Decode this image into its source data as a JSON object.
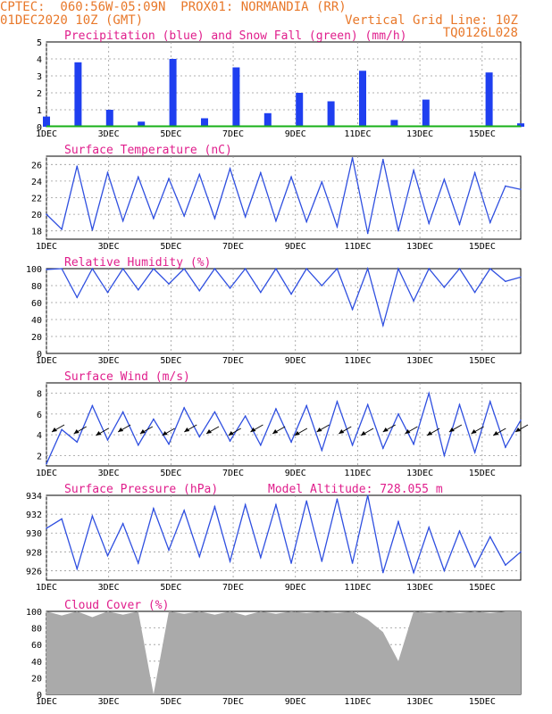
{
  "header": {
    "line1": "CPTEC:  060:56W-05:09N  PROX01: NORMANDIA (RR)",
    "line2_left": "01DEC2020 10Z (GMT)",
    "line2_right": "Vertical Grid Line: 10Z",
    "line3_right": "TQ0126L028"
  },
  "colors": {
    "header": "#e8782a",
    "title": "#e01e8c",
    "line": "#2f4fe0",
    "precip": "#1f3ff0",
    "snow": "#18b018",
    "cloud": "#aaaaaa",
    "grid": "#999999"
  },
  "x_tick_labels": [
    "1DEC",
    "3DEC",
    "5DEC",
    "7DEC",
    "9DEC",
    "11DEC",
    "13DEC",
    "15DEC"
  ],
  "panels": [
    {
      "key": "precip",
      "title": "Precipitation (blue) and Snow Fall (green) (mm/h)",
      "extra": "",
      "yticks": [
        "0",
        "1",
        "2",
        "3",
        "4",
        "5"
      ]
    },
    {
      "key": "temp",
      "title": "Surface Temperature (nC)",
      "extra": "",
      "yticks": [
        "18",
        "20",
        "22",
        "24",
        "26"
      ]
    },
    {
      "key": "rh",
      "title": "Relative Humidity (%)",
      "extra": "",
      "yticks": [
        "0",
        "20",
        "40",
        "60",
        "80",
        "100"
      ]
    },
    {
      "key": "wind",
      "title": "Surface Wind (m/s)",
      "extra": "",
      "yticks": [
        "2",
        "4",
        "6",
        "8"
      ]
    },
    {
      "key": "pres",
      "title": "Surface Pressure (hPa)",
      "extra": "Model Altitude: 728.055 m",
      "yticks": [
        "926",
        "928",
        "930",
        "932",
        "934"
      ]
    },
    {
      "key": "cloud",
      "title": "Cloud Cover (%)",
      "extra": "",
      "yticks": [
        "0",
        "20",
        "40",
        "60",
        "80",
        "100"
      ]
    }
  ],
  "chart_data": [
    {
      "type": "bar",
      "title": "Precipitation (blue) and Snow Fall (green) (mm/h)",
      "ylim": [
        0,
        5
      ],
      "x": [
        1,
        2,
        3,
        4,
        5,
        6,
        7,
        8,
        9,
        10,
        11,
        12,
        13,
        14,
        15,
        16
      ],
      "series": [
        {
          "name": "Precipitation",
          "values": [
            0.6,
            3.8,
            1.0,
            0.3,
            4.0,
            0.5,
            3.5,
            0.8,
            2.0,
            1.5,
            3.3,
            0.4,
            1.6,
            0,
            3.2,
            0.2
          ]
        },
        {
          "name": "Snow Fall",
          "values": [
            0,
            0,
            0,
            0,
            0,
            0,
            0,
            0,
            0,
            0,
            0,
            0,
            0,
            0,
            0,
            0
          ]
        }
      ]
    },
    {
      "type": "line",
      "title": "Surface Temperature (nC)",
      "ylim": [
        17,
        27
      ],
      "x": [
        1,
        2,
        3,
        4,
        5,
        6,
        7,
        8,
        9,
        10,
        11,
        12,
        13,
        14,
        15,
        16,
        17,
        18,
        19,
        20,
        21,
        22,
        23,
        24,
        25,
        26,
        27,
        28,
        29,
        30,
        31,
        32
      ],
      "values": [
        20,
        18.2,
        25.8,
        18.1,
        25,
        19.2,
        24.5,
        19.5,
        24.3,
        19.8,
        24.8,
        19.5,
        25.5,
        19.7,
        25,
        19.2,
        24.5,
        19.1,
        23.9,
        18.5,
        26.8,
        17.7,
        26.6,
        18,
        25.3,
        18.9,
        24.2,
        18.8,
        25,
        19,
        23.4,
        23
      ]
    },
    {
      "type": "line",
      "title": "Relative Humidity (%)",
      "ylim": [
        0,
        100
      ],
      "x": [
        1,
        2,
        3,
        4,
        5,
        6,
        7,
        8,
        9,
        10,
        11,
        12,
        13,
        14,
        15,
        16,
        17,
        18,
        19,
        20,
        21,
        22,
        23,
        24,
        25,
        26,
        27,
        28,
        29,
        30,
        31,
        32
      ],
      "values": [
        99,
        100,
        66,
        100,
        72,
        100,
        75,
        100,
        82,
        100,
        74,
        100,
        77,
        100,
        72,
        100,
        70,
        100,
        80,
        100,
        52,
        100,
        33,
        100,
        62,
        100,
        78,
        100,
        72,
        100,
        85,
        90
      ]
    },
    {
      "type": "line",
      "title": "Surface Wind (m/s)",
      "ylim": [
        1,
        9
      ],
      "x": [
        1,
        2,
        3,
        4,
        5,
        6,
        7,
        8,
        9,
        10,
        11,
        12,
        13,
        14,
        15,
        16,
        17,
        18,
        19,
        20,
        21,
        22,
        23,
        24,
        25,
        26,
        27,
        28,
        29,
        30,
        31,
        32
      ],
      "values": [
        1.2,
        4.5,
        3.3,
        6.8,
        3.5,
        6.2,
        3,
        5.5,
        3.1,
        6.6,
        3.8,
        6.2,
        3.4,
        5.8,
        3,
        6.5,
        3.3,
        6.8,
        2.5,
        7.2,
        3,
        6.9,
        2.7,
        6,
        3.1,
        8,
        2,
        6.9,
        2.3,
        7.2,
        2.8,
        5.4
      ]
    },
    {
      "type": "line",
      "title": "Surface Pressure (hPa)",
      "ylim": [
        925,
        934
      ],
      "x": [
        1,
        2,
        3,
        4,
        5,
        6,
        7,
        8,
        9,
        10,
        11,
        12,
        13,
        14,
        15,
        16,
        17,
        18,
        19,
        20,
        21,
        22,
        23,
        24,
        25,
        26,
        27,
        28,
        29,
        30,
        31,
        32
      ],
      "values": [
        930.5,
        931.5,
        926.2,
        931.8,
        927.6,
        931,
        926.8,
        932.6,
        928.2,
        932.4,
        927.5,
        932.8,
        927,
        933,
        927.4,
        933,
        926.8,
        933.4,
        927,
        933.6,
        926.8,
        934,
        925.8,
        931.2,
        925.8,
        930.6,
        926,
        930.2,
        926.4,
        929.6,
        926.6,
        928
      ]
    },
    {
      "type": "area",
      "title": "Cloud Cover (%)",
      "ylim": [
        0,
        100
      ],
      "x": [
        1,
        2,
        3,
        4,
        5,
        6,
        7,
        8,
        9,
        10,
        11,
        12,
        13,
        14,
        15,
        16,
        17,
        18,
        19,
        20,
        21,
        22,
        23,
        24,
        25,
        26,
        27,
        28,
        29,
        30,
        31,
        32
      ],
      "values": [
        100,
        95,
        100,
        93,
        100,
        96,
        100,
        0,
        100,
        97,
        100,
        96,
        100,
        95,
        100,
        97,
        100,
        98,
        100,
        98,
        100,
        90,
        75,
        40,
        100,
        98,
        100,
        98,
        100,
        98,
        100,
        100
      ]
    }
  ]
}
